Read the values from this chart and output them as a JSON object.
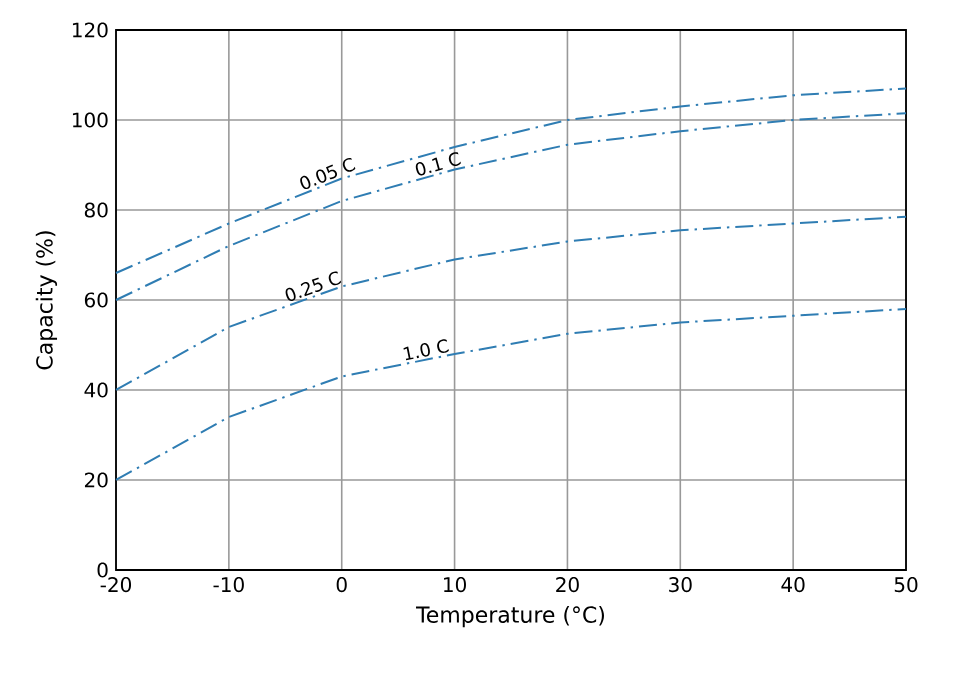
{
  "chart_data": {
    "type": "line",
    "xlabel": "Temperature (°C)",
    "ylabel": "Capacity (%)",
    "x": [
      -20,
      -10,
      0,
      10,
      20,
      30,
      40,
      50
    ],
    "series": [
      {
        "name": "0.05 C",
        "color": "#2f7db3",
        "values": [
          66,
          77,
          87,
          94,
          100,
          103,
          105.5,
          107
        ]
      },
      {
        "name": "0.1 C",
        "color": "#2f7db3",
        "values": [
          60,
          72,
          82,
          89,
          94.5,
          97.5,
          100,
          101.5
        ]
      },
      {
        "name": "0.25 C",
        "color": "#2f7db3",
        "values": [
          40,
          54,
          63,
          69,
          73,
          75.5,
          77,
          78.5
        ]
      },
      {
        "name": "1.0 C",
        "color": "#2f7db3",
        "values": [
          20,
          34,
          43,
          48,
          52.5,
          55,
          56.5,
          58
        ]
      }
    ],
    "xlim": [
      -20,
      50
    ],
    "xticks": [
      -20,
      -10,
      0,
      10,
      20,
      30,
      40,
      50
    ],
    "ylim": [
      0,
      120
    ],
    "yticks": [
      0,
      20,
      40,
      60,
      80,
      100,
      120
    ],
    "grid": true,
    "legend": false,
    "marker": "none",
    "line_style": "dashdot"
  }
}
